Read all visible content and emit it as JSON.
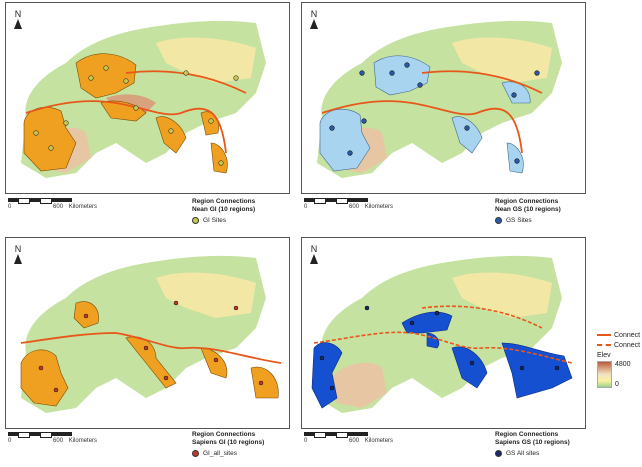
{
  "compass_label": "N",
  "scale": {
    "zero": "0",
    "mid": "600",
    "unit": "Kilometers"
  },
  "panels": [
    {
      "title": "Region Connections",
      "subtitle": "Nean GI (10 regions)",
      "legend_label": "GI Sites",
      "site_color": "#c8c84a",
      "region_color": "#f0a020"
    },
    {
      "title": "Region Connections",
      "subtitle": "Nean GS (10 regions)",
      "legend_label": "GS Sites",
      "site_color": "#2a5aa8",
      "region_color": "#a9d4f0"
    },
    {
      "title": "Region Connections",
      "subtitle": "Sapiens GI (10 regions)",
      "legend_label": "GI_all_sites",
      "site_color": "#c0392b",
      "region_color": "#f0a020"
    },
    {
      "title": "Region Connections",
      "subtitle": "Sapiens GS (10 regions)",
      "legend_label": "GS All sites",
      "site_color": "#1b2a6b",
      "region_color": "#1450d0"
    }
  ],
  "side_legend": {
    "connect_solid": "Connect",
    "connect_dashed": "Connect",
    "elev_title": "Elev",
    "elev_max": "4800",
    "elev_min": "0",
    "connect_color": "#e8571a"
  }
}
